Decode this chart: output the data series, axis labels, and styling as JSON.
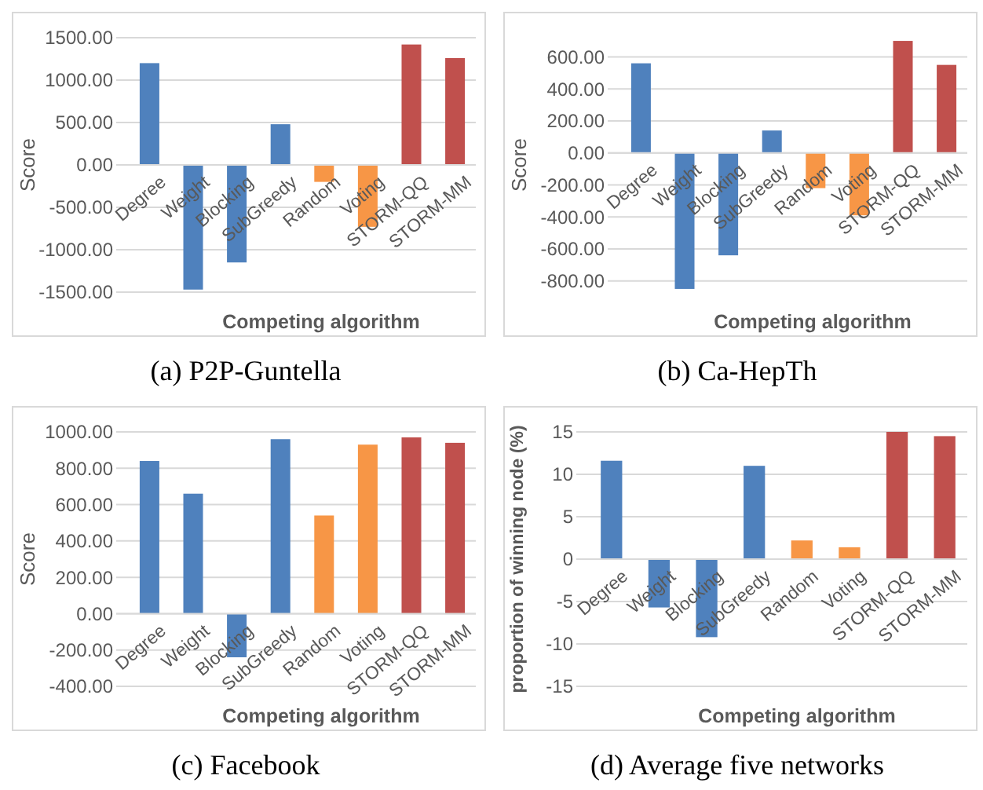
{
  "chart_data": [
    {
      "type": "bar",
      "title": "(a) P2P-Guntella",
      "xlabel": "Competing algorithm",
      "ylabel": "Score",
      "categories": [
        "Degree",
        "Weight",
        "Blocking",
        "SubGreedy",
        "Random",
        "Voting",
        "STORM-QQ",
        "STORM-MM"
      ],
      "values": [
        1200,
        -1470,
        -1150,
        480,
        -200,
        -730,
        1420,
        1260
      ],
      "colors": [
        "#4f81bd",
        "#4f81bd",
        "#4f81bd",
        "#4f81bd",
        "#f79646",
        "#f79646",
        "#c0504d",
        "#c0504d"
      ],
      "ylim": [
        -1500,
        1500
      ],
      "yticks": [
        {
          "value": -1500,
          "label": "-1500.00"
        },
        {
          "value": -1000,
          "label": "-1000.00"
        },
        {
          "value": -500,
          "label": "-500.00"
        },
        {
          "value": 0,
          "label": "0.00"
        },
        {
          "value": 500,
          "label": "500.00"
        },
        {
          "value": 1000,
          "label": "1000.00"
        },
        {
          "value": 1500,
          "label": "1500.00"
        }
      ],
      "grid": "y"
    },
    {
      "type": "bar",
      "title": "(b) Ca-HepTh",
      "xlabel": "Competing algorithm",
      "ylabel": "Score",
      "categories": [
        "Degree",
        "Weight",
        "Blocking",
        "SubGreedy",
        "Random",
        "Voting",
        "STORM-QQ",
        "STORM-MM"
      ],
      "values": [
        560,
        -850,
        -640,
        140,
        -220,
        -390,
        700,
        550
      ],
      "colors": [
        "#4f81bd",
        "#4f81bd",
        "#4f81bd",
        "#4f81bd",
        "#f79646",
        "#f79646",
        "#c0504d",
        "#c0504d"
      ],
      "ylim": [
        -870,
        720
      ],
      "yticks": [
        {
          "value": -800,
          "label": "-800.00"
        },
        {
          "value": -600,
          "label": "-600.00"
        },
        {
          "value": -400,
          "label": "-400.00"
        },
        {
          "value": -200,
          "label": "-200.00"
        },
        {
          "value": 0,
          "label": "0.00"
        },
        {
          "value": 200,
          "label": "200.00"
        },
        {
          "value": 400,
          "label": "400.00"
        },
        {
          "value": 600,
          "label": "600.00"
        }
      ],
      "grid": "y"
    },
    {
      "type": "bar",
      "title": "(c) Facebook",
      "xlabel": "Competing algorithm",
      "ylabel": "Score",
      "categories": [
        "Degree",
        "Weight",
        "Blocking",
        "SubGreedy",
        "Random",
        "Voting",
        "STORM-QQ",
        "STORM-MM"
      ],
      "values": [
        840,
        660,
        -240,
        960,
        540,
        930,
        970,
        940
      ],
      "colors": [
        "#4f81bd",
        "#4f81bd",
        "#4f81bd",
        "#4f81bd",
        "#f79646",
        "#f79646",
        "#c0504d",
        "#c0504d"
      ],
      "ylim": [
        -400,
        1000
      ],
      "yticks": [
        {
          "value": -400,
          "label": "-400.00"
        },
        {
          "value": -200,
          "label": "-200.00"
        },
        {
          "value": 0,
          "label": "0.00"
        },
        {
          "value": 200,
          "label": "200.00"
        },
        {
          "value": 400,
          "label": "400.00"
        },
        {
          "value": 600,
          "label": "600.00"
        },
        {
          "value": 800,
          "label": "800.00"
        },
        {
          "value": 1000,
          "label": "1000.00"
        }
      ],
      "grid": "y"
    },
    {
      "type": "bar",
      "title": "(d) Average five networks",
      "xlabel": "Competing algorithm",
      "ylabel": "proportion of winning node (%)",
      "categories": [
        "Degree",
        "Weight",
        "Blocking",
        "SubGreedy",
        "Random",
        "Voting",
        "STORM-QQ",
        "STORM-MM"
      ],
      "values": [
        11.6,
        -5.7,
        -9.2,
        11.0,
        2.2,
        1.4,
        15.0,
        14.5
      ],
      "colors": [
        "#4f81bd",
        "#4f81bd",
        "#4f81bd",
        "#4f81bd",
        "#f79646",
        "#f79646",
        "#c0504d",
        "#c0504d"
      ],
      "ylim": [
        -15,
        15
      ],
      "yticks": [
        -15,
        -10,
        -5,
        0,
        5,
        10,
        15
      ],
      "grid": "y"
    }
  ]
}
